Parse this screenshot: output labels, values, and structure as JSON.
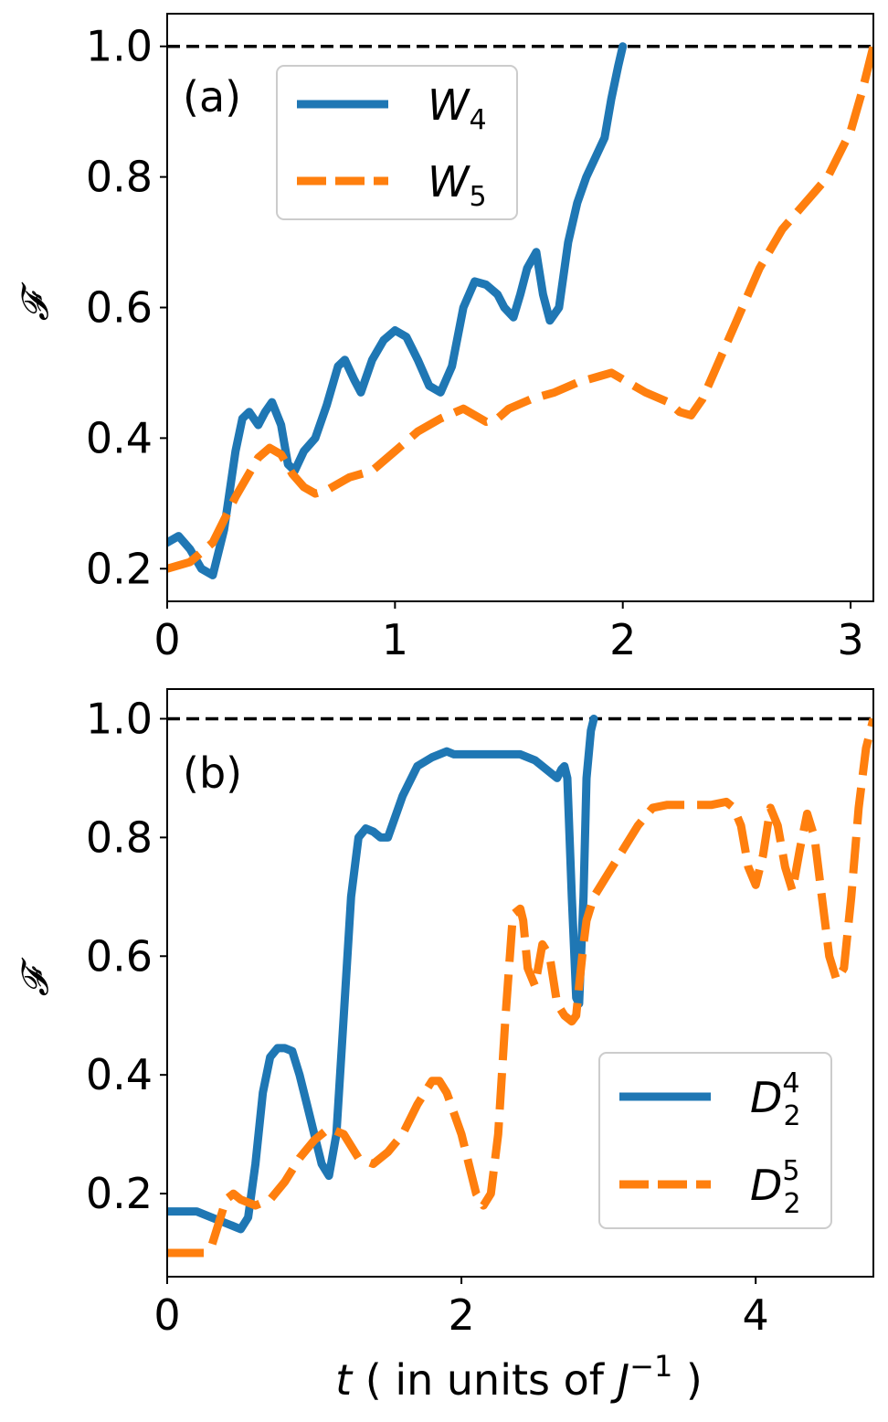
{
  "figure": {
    "xlabel_parts": {
      "t": "t",
      "mid": " ( in units of ",
      "J": "J",
      "sup": "−1",
      "end": " )"
    }
  },
  "chart_data": [
    {
      "type": "line",
      "panel_label": "(a)",
      "ylabel": "𝓕",
      "xlim": [
        0,
        3.1
      ],
      "ylim": [
        0.15,
        1.05
      ],
      "xticks": [
        0,
        1,
        2,
        3
      ],
      "xtick_labels": [
        "0",
        "1",
        "2",
        "3"
      ],
      "yticks": [
        0.2,
        0.4,
        0.6,
        0.8,
        1.0
      ],
      "ytick_labels": [
        "0.2",
        "0.4",
        "0.6",
        "0.8",
        "1.0"
      ],
      "reference_line": 1.0,
      "legend": {
        "position": "upper-left"
      },
      "series": [
        {
          "name": "W",
          "name_sub": "4",
          "color": "#1f77b4",
          "style": "solid",
          "x": [
            0,
            0.05,
            0.1,
            0.15,
            0.2,
            0.25,
            0.3,
            0.33,
            0.36,
            0.4,
            0.43,
            0.46,
            0.5,
            0.53,
            0.56,
            0.6,
            0.65,
            0.7,
            0.75,
            0.78,
            0.82,
            0.85,
            0.9,
            0.95,
            1.0,
            1.05,
            1.1,
            1.15,
            1.2,
            1.25,
            1.3,
            1.35,
            1.4,
            1.45,
            1.48,
            1.52,
            1.55,
            1.58,
            1.62,
            1.65,
            1.68,
            1.72,
            1.76,
            1.8,
            1.84,
            1.88,
            1.92,
            1.95,
            1.98,
            2.0
          ],
          "y": [
            0.24,
            0.25,
            0.23,
            0.2,
            0.19,
            0.26,
            0.38,
            0.43,
            0.44,
            0.42,
            0.44,
            0.455,
            0.42,
            0.36,
            0.35,
            0.38,
            0.4,
            0.45,
            0.51,
            0.52,
            0.49,
            0.47,
            0.52,
            0.55,
            0.565,
            0.555,
            0.52,
            0.48,
            0.47,
            0.51,
            0.6,
            0.64,
            0.635,
            0.62,
            0.6,
            0.585,
            0.62,
            0.66,
            0.685,
            0.62,
            0.58,
            0.6,
            0.7,
            0.76,
            0.8,
            0.83,
            0.86,
            0.92,
            0.97,
            1.0
          ]
        },
        {
          "name": "W",
          "name_sub": "5",
          "color": "#ff7f0e",
          "style": "dashed",
          "x": [
            0,
            0.1,
            0.2,
            0.3,
            0.4,
            0.45,
            0.5,
            0.55,
            0.6,
            0.65,
            0.7,
            0.8,
            0.9,
            1.0,
            1.1,
            1.2,
            1.3,
            1.4,
            1.45,
            1.5,
            1.6,
            1.7,
            1.8,
            1.9,
            1.95,
            2.0,
            2.1,
            2.2,
            2.25,
            2.3,
            2.35,
            2.4,
            2.5,
            2.6,
            2.7,
            2.8,
            2.9,
            3.0,
            3.05,
            3.1
          ],
          "y": [
            0.2,
            0.21,
            0.24,
            0.31,
            0.37,
            0.385,
            0.375,
            0.345,
            0.325,
            0.315,
            0.32,
            0.34,
            0.35,
            0.38,
            0.41,
            0.43,
            0.445,
            0.425,
            0.43,
            0.445,
            0.46,
            0.47,
            0.485,
            0.495,
            0.5,
            0.49,
            0.47,
            0.455,
            0.44,
            0.435,
            0.46,
            0.5,
            0.58,
            0.66,
            0.72,
            0.76,
            0.8,
            0.87,
            0.93,
            1.0
          ]
        }
      ]
    },
    {
      "type": "line",
      "panel_label": "(b)",
      "ylabel": "𝓕",
      "xlim": [
        0,
        4.8
      ],
      "ylim": [
        0.06,
        1.05
      ],
      "xticks": [
        0,
        2,
        4
      ],
      "xtick_labels": [
        "0",
        "2",
        "4"
      ],
      "yticks": [
        0.2,
        0.4,
        0.6,
        0.8,
        1.0
      ],
      "ytick_labels": [
        "0.2",
        "0.4",
        "0.6",
        "0.8",
        "1.0"
      ],
      "reference_line": 1.0,
      "legend": {
        "position": "lower-right"
      },
      "series": [
        {
          "name": "D",
          "name_sub": "2",
          "name_sup": "4",
          "color": "#1f77b4",
          "style": "solid",
          "x": [
            0,
            0.2,
            0.3,
            0.4,
            0.5,
            0.55,
            0.6,
            0.65,
            0.7,
            0.75,
            0.8,
            0.85,
            0.9,
            0.95,
            1.0,
            1.05,
            1.1,
            1.15,
            1.2,
            1.25,
            1.3,
            1.35,
            1.4,
            1.45,
            1.5,
            1.6,
            1.7,
            1.8,
            1.9,
            1.95,
            2.0,
            2.2,
            2.4,
            2.5,
            2.6,
            2.65,
            2.68,
            2.7,
            2.72,
            2.75,
            2.78,
            2.8,
            2.83,
            2.85,
            2.88,
            2.9
          ],
          "y": [
            0.17,
            0.17,
            0.16,
            0.15,
            0.14,
            0.16,
            0.25,
            0.37,
            0.43,
            0.445,
            0.445,
            0.44,
            0.4,
            0.35,
            0.3,
            0.25,
            0.23,
            0.3,
            0.5,
            0.7,
            0.8,
            0.815,
            0.81,
            0.8,
            0.8,
            0.87,
            0.92,
            0.935,
            0.945,
            0.94,
            0.94,
            0.94,
            0.94,
            0.93,
            0.91,
            0.9,
            0.915,
            0.92,
            0.9,
            0.7,
            0.53,
            0.52,
            0.7,
            0.9,
            0.98,
            1.0
          ]
        },
        {
          "name": "D",
          "name_sub": "2",
          "name_sup": "5",
          "color": "#ff7f0e",
          "style": "dashed",
          "x": [
            0,
            0.25,
            0.3,
            0.35,
            0.4,
            0.45,
            0.5,
            0.6,
            0.7,
            0.8,
            0.9,
            1.0,
            1.1,
            1.2,
            1.3,
            1.4,
            1.5,
            1.6,
            1.7,
            1.8,
            1.85,
            1.9,
            2.0,
            2.1,
            2.15,
            2.2,
            2.25,
            2.3,
            2.35,
            2.4,
            2.42,
            2.45,
            2.5,
            2.55,
            2.6,
            2.65,
            2.7,
            2.75,
            2.78,
            2.8,
            2.83,
            2.85,
            2.9,
            3.0,
            3.1,
            3.2,
            3.3,
            3.4,
            3.5,
            3.6,
            3.7,
            3.8,
            3.85,
            3.9,
            3.95,
            4.0,
            4.05,
            4.1,
            4.15,
            4.2,
            4.25,
            4.3,
            4.35,
            4.4,
            4.45,
            4.5,
            4.55,
            4.6,
            4.65,
            4.7,
            4.75,
            4.8
          ],
          "y": [
            0.1,
            0.1,
            0.11,
            0.15,
            0.19,
            0.2,
            0.19,
            0.18,
            0.19,
            0.22,
            0.26,
            0.29,
            0.31,
            0.3,
            0.26,
            0.25,
            0.27,
            0.3,
            0.35,
            0.39,
            0.39,
            0.37,
            0.3,
            0.2,
            0.18,
            0.2,
            0.3,
            0.5,
            0.67,
            0.68,
            0.66,
            0.58,
            0.55,
            0.62,
            0.6,
            0.52,
            0.5,
            0.49,
            0.5,
            0.55,
            0.62,
            0.66,
            0.7,
            0.74,
            0.78,
            0.82,
            0.85,
            0.855,
            0.855,
            0.855,
            0.855,
            0.86,
            0.85,
            0.82,
            0.75,
            0.72,
            0.77,
            0.85,
            0.82,
            0.75,
            0.71,
            0.78,
            0.84,
            0.8,
            0.7,
            0.6,
            0.56,
            0.58,
            0.7,
            0.85,
            0.95,
            1.0
          ]
        }
      ]
    }
  ]
}
